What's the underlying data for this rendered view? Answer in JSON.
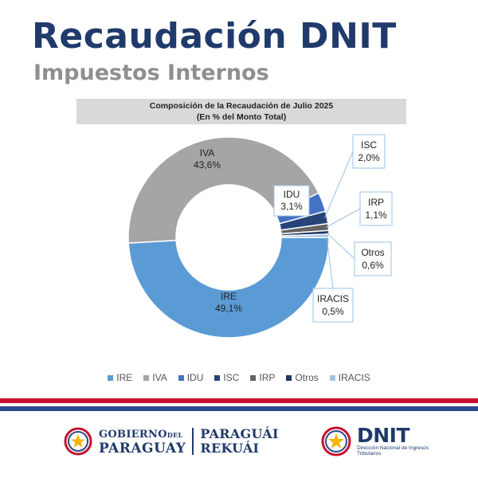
{
  "header": {
    "title": "Recaudación DNIT",
    "subtitle": "Impuestos Internos"
  },
  "chart_data": {
    "type": "pie",
    "variant": "donut",
    "title": "Composición de la Recaudación de Julio 2025",
    "subtitle": "(En % del Monto Total)",
    "slices": [
      {
        "name": "IRE",
        "value": 49.1,
        "label": "49,1%",
        "color": "#5b9bd5"
      },
      {
        "name": "IVA",
        "value": 43.6,
        "label": "43,6%",
        "color": "#a5a5a5"
      },
      {
        "name": "IDU",
        "value": 3.1,
        "label": "3,1%",
        "color": "#4472c4"
      },
      {
        "name": "ISC",
        "value": 2.0,
        "label": "2,0%",
        "color": "#264478"
      },
      {
        "name": "IRP",
        "value": 1.1,
        "label": "1,1%",
        "color": "#636363"
      },
      {
        "name": "Otros",
        "value": 0.6,
        "label": "0,6%",
        "color": "#1f3864"
      },
      {
        "name": "IRACIS",
        "value": 0.5,
        "label": "0,5%",
        "color": "#9dc3e6"
      }
    ],
    "legend_position": "bottom"
  },
  "footer": {
    "gov_line1_a": "GOBIERNO",
    "gov_line1_b": "DEL",
    "gov_line2": "PARAGUAY",
    "gov_right1": "PARAGUÁI",
    "gov_right2": "REKUÁI",
    "dnit_name": "DNIT",
    "dnit_sub": "Dirección Nacional de Ingresos Tributarios"
  },
  "colors": {
    "title": "#1f3a6b",
    "subtitle": "#8f8f8f",
    "flag_red": "#c8102e",
    "flag_blue": "#2b4a8b"
  }
}
